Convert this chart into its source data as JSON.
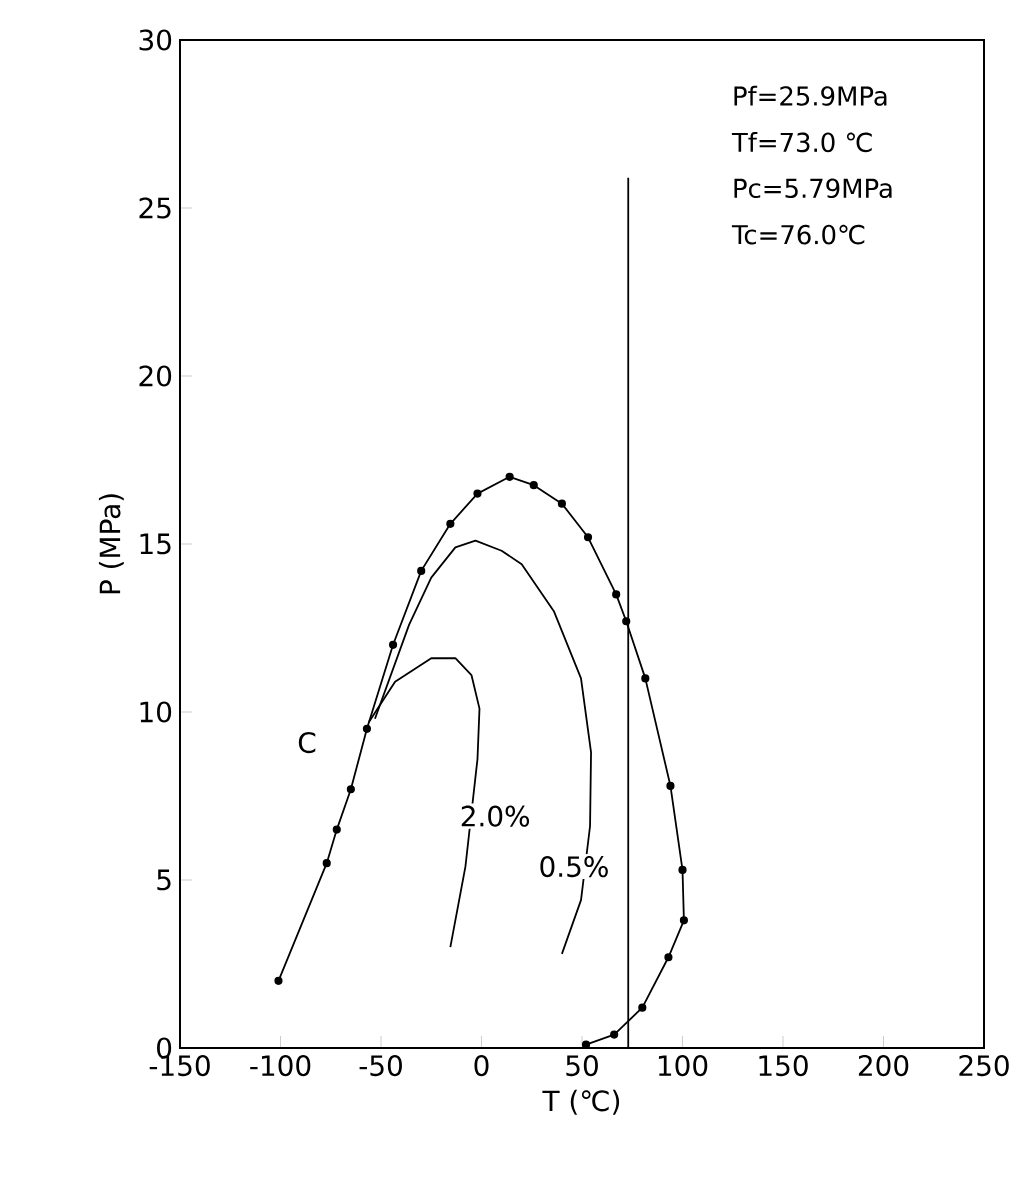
{
  "chart_data": {
    "type": "line",
    "xlabel": "T (℃)",
    "ylabel": "P (MPa)",
    "xlim": [
      -150,
      250
    ],
    "ylim": [
      0,
      30
    ],
    "xticks": [
      -150,
      -100,
      -50,
      0,
      50,
      100,
      150,
      200,
      250
    ],
    "yticks": [
      0,
      5,
      10,
      15,
      20,
      25,
      30
    ],
    "grid": false,
    "series": [
      {
        "color": "#000000",
        "marker": "circle",
        "x": [
          -101,
          -77,
          -72,
          -65,
          -57,
          -44,
          -30,
          -15.5,
          -2,
          14,
          26,
          40,
          53,
          67,
          72,
          81.5,
          94,
          100,
          100.7,
          93,
          80,
          66,
          52
        ],
        "values": [
          2.0,
          5.5,
          6.5,
          7.7,
          9.5,
          12.0,
          14.2,
          15.6,
          16.5,
          17.0,
          16.75,
          16.2,
          15.2,
          13.5,
          12.7,
          11.0,
          7.8,
          5.3,
          3.8,
          2.7,
          1.2,
          0.4,
          0.1
        ]
      },
      {
        "color": "#000000",
        "marker": "none",
        "x": [
          -15.5,
          -8,
          -2,
          -1,
          -5,
          -13,
          -25,
          -43,
          -56
        ],
        "values": [
          3.0,
          5.4,
          8.6,
          10.1,
          11.1,
          11.6,
          11.6,
          10.9,
          9.7
        ]
      },
      {
        "color": "#000000",
        "marker": "none",
        "x": [
          40,
          49.5,
          54,
          54.5,
          49.5,
          36,
          20,
          10,
          -3,
          -13,
          -25,
          -36,
          -53
        ],
        "values": [
          2.8,
          4.4,
          6.6,
          8.8,
          11.0,
          13.0,
          14.4,
          14.8,
          15.1,
          14.9,
          14.0,
          12.6,
          9.8
        ]
      },
      {
        "color": "#000000",
        "marker": "none",
        "x": [
          73,
          73
        ],
        "values": [
          0,
          25.9
        ]
      }
    ],
    "annotations": [
      "Pf=25.9MPa",
      "Tf=73.0 ℃",
      "Pc=5.79MPa",
      "Tc=76.0℃",
      "C",
      "2.0%",
      "0.5%"
    ]
  }
}
